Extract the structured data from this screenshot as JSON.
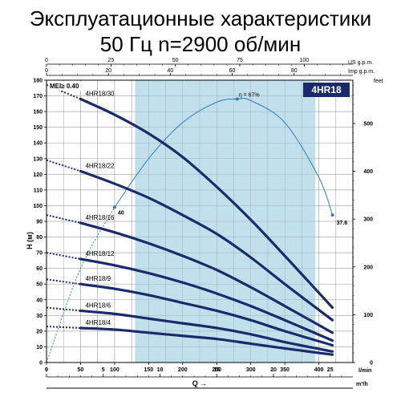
{
  "title": "Эксплуатационные характеристики",
  "subtitle": "50 Гц  n=2900 об/мин",
  "chart_data": {
    "type": "line",
    "model": "4HR18",
    "mei": "MEI≥ 0.40",
    "xlabel": "Q →",
    "ylabel": "H (м)",
    "x_primary": {
      "unit": "l/min",
      "range": [
        0,
        450
      ],
      "ticks": [
        0,
        50,
        100,
        150,
        200,
        250,
        300,
        350,
        400
      ]
    },
    "x_m3h": {
      "unit": "m³/h",
      "range": [
        0,
        27
      ],
      "ticks": [
        0,
        5,
        10,
        15,
        20,
        25
      ]
    },
    "x_usgpm": {
      "unit": "US g.p.m.",
      "ticks": [
        0,
        25,
        50,
        75,
        100
      ]
    },
    "x_impgpm": {
      "unit": "Imp g.p.m.",
      "ticks": [
        0,
        20,
        40,
        60,
        80
      ]
    },
    "y_primary": {
      "unit": "м",
      "range": [
        0,
        180
      ],
      "ticks": [
        0,
        10,
        20,
        30,
        40,
        50,
        60,
        70,
        80,
        90,
        100,
        110,
        120,
        130,
        140,
        150,
        160,
        170,
        180
      ]
    },
    "y_feet": {
      "unit": "feet",
      "ticks": [
        0,
        100,
        200,
        300,
        400,
        500
      ]
    },
    "recommended_range_lpm": [
      130,
      395
    ],
    "grid": true,
    "series": [
      {
        "name": "4HR18/30",
        "x": [
          0,
          50,
          100,
          150,
          200,
          250,
          300,
          350,
          420
        ],
        "values": [
          177,
          168,
          158,
          146,
          131,
          112,
          91,
          68,
          35
        ]
      },
      {
        "name": "4HR18/22",
        "x": [
          0,
          50,
          100,
          150,
          200,
          250,
          300,
          350,
          420
        ],
        "values": [
          129,
          122,
          114,
          105,
          94,
          82,
          67,
          50,
          27
        ]
      },
      {
        "name": "4HR18/16",
        "x": [
          0,
          50,
          100,
          150,
          200,
          250,
          300,
          350,
          420
        ],
        "values": [
          94,
          89,
          83,
          76,
          68,
          59,
          48,
          36,
          19
        ]
      },
      {
        "name": "4HR18/12",
        "x": [
          0,
          50,
          100,
          150,
          200,
          250,
          300,
          350,
          420
        ],
        "values": [
          70,
          66,
          62,
          57,
          51,
          44,
          36,
          27,
          14
        ]
      },
      {
        "name": "4HR18/9",
        "x": [
          0,
          50,
          100,
          150,
          200,
          250,
          300,
          350,
          420
        ],
        "values": [
          53,
          50,
          47,
          43,
          38,
          33,
          27,
          20,
          11
        ]
      },
      {
        "name": "4HR18/6",
        "x": [
          0,
          50,
          100,
          150,
          200,
          250,
          300,
          350,
          420
        ],
        "values": [
          35,
          33,
          31,
          28,
          25,
          22,
          18,
          13,
          7
        ]
      },
      {
        "name": "4HR18/4",
        "x": [
          0,
          50,
          100,
          150,
          200,
          250,
          300,
          350,
          420
        ],
        "values": [
          23,
          22,
          21,
          19,
          17,
          15,
          12,
          9,
          5
        ]
      }
    ],
    "efficiency": {
      "x": [
        0,
        50,
        100,
        150,
        200,
        250,
        280,
        300,
        350,
        400,
        420
      ],
      "values": [
        0,
        60,
        99,
        130,
        153,
        166,
        168,
        167,
        153,
        118,
        94
      ],
      "labels": [
        {
          "text": "η = 67%",
          "x": 280,
          "y": 168
        },
        {
          "text": "40",
          "x": 100,
          "y": 99
        },
        {
          "text": "37.6",
          "x": 420,
          "y": 94
        }
      ]
    }
  }
}
